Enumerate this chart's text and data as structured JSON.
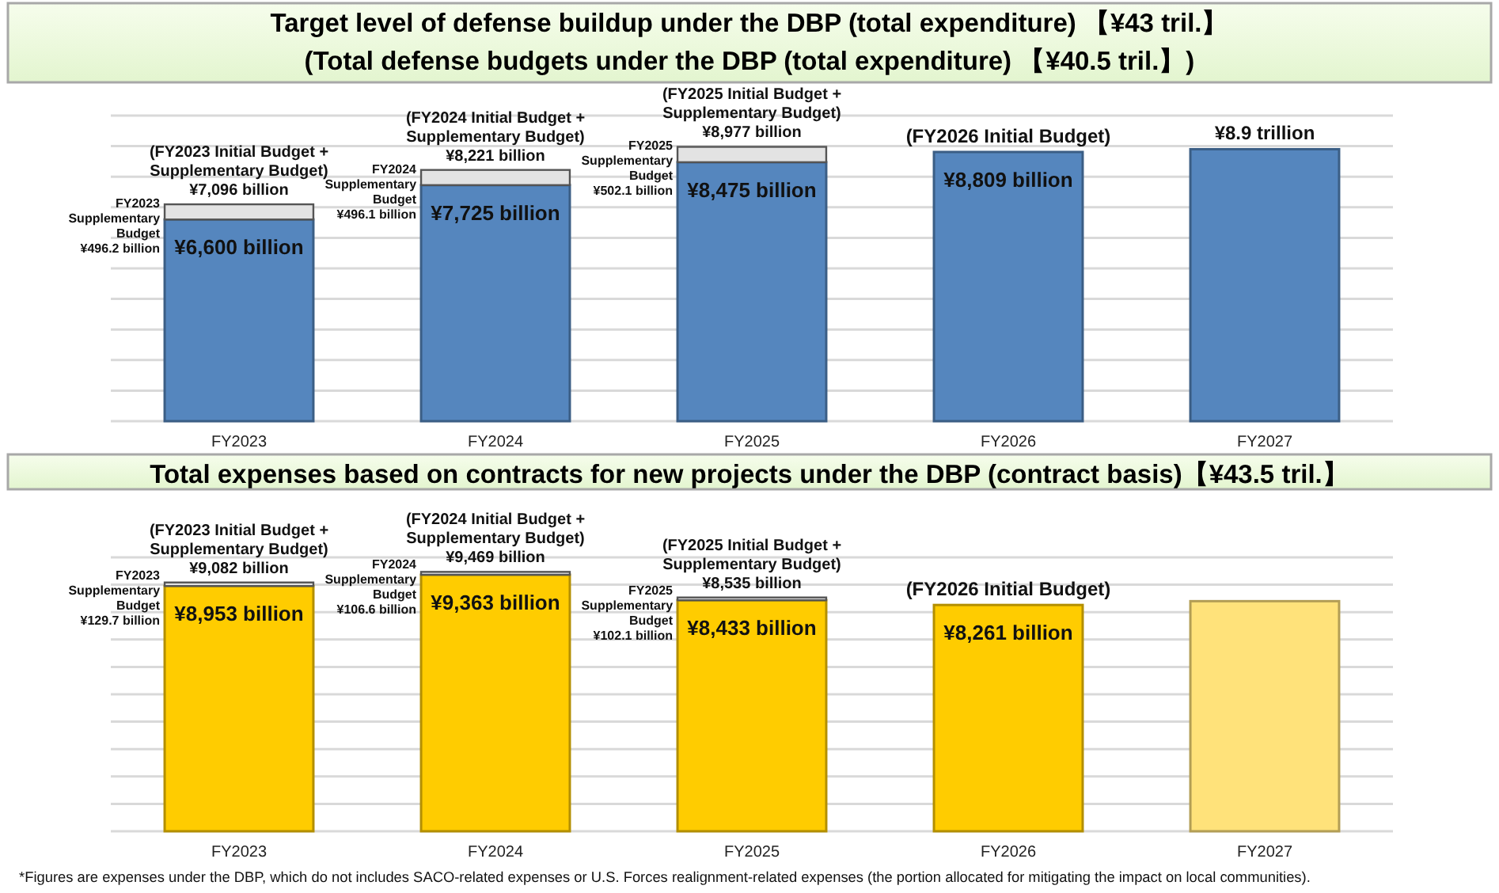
{
  "chart_data": [
    {
      "type": "bar",
      "title": "Target level of defense buildup under the DBP (total expenditure) 【¥43 tril.】",
      "subtitle": "(Total defense budgets under the DBP (total expenditure) 【¥40.5 tril.】)",
      "categories": [
        "FY2023",
        "FY2024",
        "FY2025",
        "FY2026",
        "FY2027"
      ],
      "stacked": true,
      "grid": "y",
      "tick_labels": "x",
      "ylim": [
        0,
        10000
      ],
      "yticks": [
        {
          "value": 0,
          "label": null
        },
        {
          "value": 1000,
          "label": null
        },
        {
          "value": 2000,
          "label": null
        },
        {
          "value": 3000,
          "label": null
        },
        {
          "value": 4000,
          "label": null
        },
        {
          "value": 5000,
          "label": null
        },
        {
          "value": 6000,
          "label": null
        },
        {
          "value": 7000,
          "label": null
        },
        {
          "value": 8000,
          "label": null
        },
        {
          "value": 9000,
          "label": null
        },
        {
          "value": 10000,
          "label": null
        }
      ],
      "series": [
        {
          "color": "#5586be",
          "values": [
            6600,
            7725,
            8475,
            8809,
            8900
          ],
          "value_labels": [
            "¥6,600 billion",
            "¥7,725 billion",
            "¥8,475 billion",
            "¥8,809 billion",
            null
          ]
        },
        {
          "color": "#e3e3e3",
          "values": [
            496.2,
            496.1,
            502.1,
            null,
            null
          ]
        }
      ],
      "totals": [
        "(FY2023 Initial Budget +\nSupplementary Budget)\n¥7,096 billion",
        "(FY2024 Initial Budget +\nSupplementary Budget)\n¥8,221 billion",
        "(FY2025 Initial Budget +\nSupplementary Budget)\n¥8,977 billion",
        "(FY2026 Initial Budget)",
        null
      ],
      "annotations": [
        {
          "text": "¥8.9 trillion",
          "x": "FY2027",
          "y": 8900
        },
        "FY2023\nSupplementary\nBudget\n¥496.2 billion",
        "FY2024\nSupplementary\nBudget\n¥496.1 billion",
        "FY2025\nSupplementary\nBudget\n¥502.1 billion"
      ]
    },
    {
      "type": "bar",
      "title": "Total expenses based on contracts for new projects under the DBP (contract basis)【¥43.5 tril.】",
      "categories": [
        "FY2023",
        "FY2024",
        "FY2025",
        "FY2026",
        "FY2027"
      ],
      "stacked": true,
      "grid": "y",
      "tick_labels": "x",
      "ylim": [
        0,
        10000
      ],
      "yticks": [
        {
          "value": 0,
          "label": null
        },
        {
          "value": 1000,
          "label": null
        },
        {
          "value": 2000,
          "label": null
        },
        {
          "value": 3000,
          "label": null
        },
        {
          "value": 4000,
          "label": null
        },
        {
          "value": 5000,
          "label": null
        },
        {
          "value": 6000,
          "label": null
        },
        {
          "value": 7000,
          "label": null
        },
        {
          "value": 8000,
          "label": null
        },
        {
          "value": 9000,
          "label": null
        },
        {
          "value": 10000,
          "label": null
        }
      ],
      "series": [
        {
          "colors": [
            "#ffcc00",
            "#ffcc00",
            "#ffcc00",
            "#ffcc00",
            "#ffe27a"
          ],
          "values": [
            8953,
            9363,
            8433,
            8261,
            8400
          ],
          "value_labels": [
            "¥8,953 billion",
            "¥9,363 billion",
            "¥8,433 billion",
            "¥8,261 billion",
            null
          ]
        },
        {
          "color": "#e3e3e3",
          "values": [
            129.7,
            106.6,
            102.1,
            null,
            null
          ]
        }
      ],
      "totals": [
        "(FY2023 Initial Budget +\nSupplementary Budget)\n¥9,082 billion",
        "(FY2024 Initial Budget +\nSupplementary Budget)\n¥9,469 billion",
        "(FY2025 Initial Budget +\nSupplementary Budget)\n¥8,535 billion",
        "(FY2026 Initial Budget)",
        null
      ],
      "annotations": [
        "FY2023\nSupplementary\nBudget\n¥129.7 billion",
        "FY2024\nSupplementary\nBudget\n¥106.6 billion",
        "FY2025\nSupplementary\nBudget\n¥102.1 billion",
        "*Figures are expenses under the DBP, which do not includes SACO-related expenses or U.S. Forces realignment-related expenses (the portion allocated for mitigating the impact on local communities)."
      ]
    }
  ]
}
